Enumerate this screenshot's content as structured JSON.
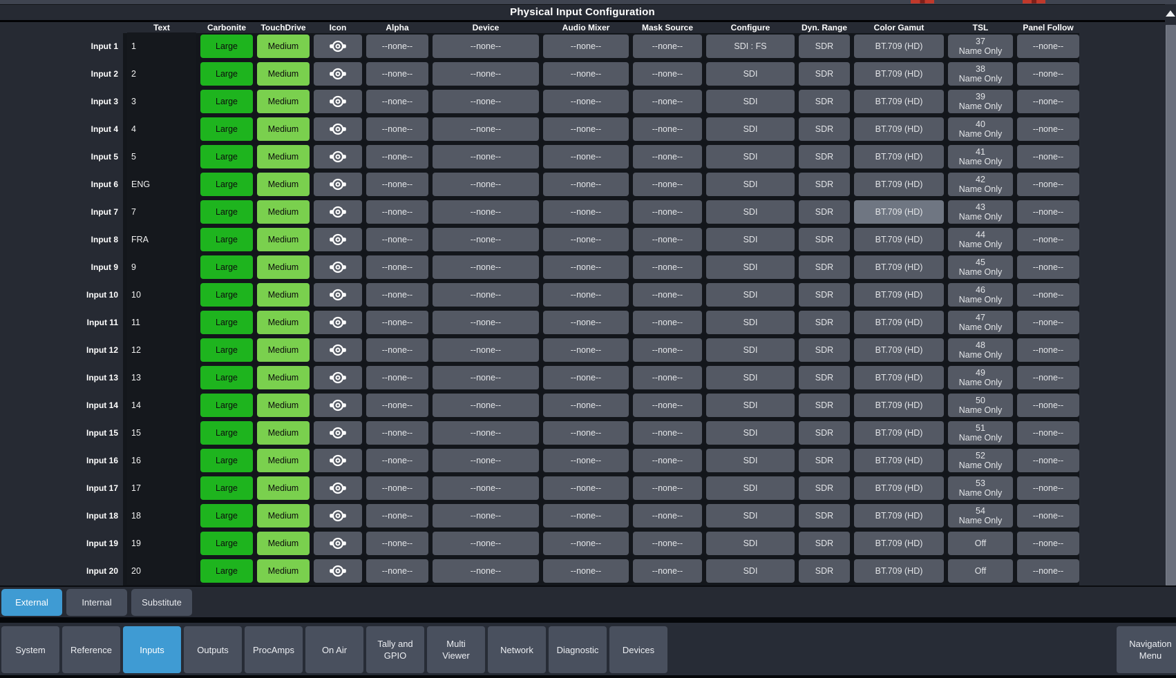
{
  "title": "Physical Input Configuration",
  "colors": {
    "accent_blue": "#3f9bd3",
    "carbonite_green": "#1eb41e",
    "touchdrive_green": "#7ad04e",
    "cell_gray": "#545964",
    "highlight_gray": "#6f7682",
    "red_indicator": "#c0392b",
    "panel_bg": "#262a33"
  },
  "table": {
    "columns": [
      "Text",
      "Carbonite",
      "TouchDrive",
      "Icon",
      "Alpha",
      "Device",
      "Audio Mixer",
      "Mask Source",
      "Configure",
      "Dyn. Range",
      "Color Gamut",
      "TSL",
      "Panel Follow"
    ],
    "icon_cell_glyph": "eye-icon",
    "rows": [
      {
        "label": "Input 1",
        "text": "1",
        "carbonite": "Large",
        "touchdrive": "Medium",
        "alpha": "--none--",
        "device": "--none--",
        "audio_mixer": "--none--",
        "mask_source": "--none--",
        "configure": "SDI : FS",
        "dyn_range": "SDR",
        "color_gamut": "BT.709 (HD)",
        "tsl_address": "37",
        "tsl_mode": "Name Only",
        "panel_follow": "--none--"
      },
      {
        "label": "Input 2",
        "text": "2",
        "carbonite": "Large",
        "touchdrive": "Medium",
        "alpha": "--none--",
        "device": "--none--",
        "audio_mixer": "--none--",
        "mask_source": "--none--",
        "configure": "SDI",
        "dyn_range": "SDR",
        "color_gamut": "BT.709 (HD)",
        "tsl_address": "38",
        "tsl_mode": "Name Only",
        "panel_follow": "--none--"
      },
      {
        "label": "Input 3",
        "text": "3",
        "carbonite": "Large",
        "touchdrive": "Medium",
        "alpha": "--none--",
        "device": "--none--",
        "audio_mixer": "--none--",
        "mask_source": "--none--",
        "configure": "SDI",
        "dyn_range": "SDR",
        "color_gamut": "BT.709 (HD)",
        "tsl_address": "39",
        "tsl_mode": "Name Only",
        "panel_follow": "--none--"
      },
      {
        "label": "Input 4",
        "text": "4",
        "carbonite": "Large",
        "touchdrive": "Medium",
        "alpha": "--none--",
        "device": "--none--",
        "audio_mixer": "--none--",
        "mask_source": "--none--",
        "configure": "SDI",
        "dyn_range": "SDR",
        "color_gamut": "BT.709 (HD)",
        "tsl_address": "40",
        "tsl_mode": "Name Only",
        "panel_follow": "--none--"
      },
      {
        "label": "Input 5",
        "text": "5",
        "carbonite": "Large",
        "touchdrive": "Medium",
        "alpha": "--none--",
        "device": "--none--",
        "audio_mixer": "--none--",
        "mask_source": "--none--",
        "configure": "SDI",
        "dyn_range": "SDR",
        "color_gamut": "BT.709 (HD)",
        "tsl_address": "41",
        "tsl_mode": "Name Only",
        "panel_follow": "--none--"
      },
      {
        "label": "Input 6",
        "text": "ENG",
        "carbonite": "Large",
        "touchdrive": "Medium",
        "alpha": "--none--",
        "device": "--none--",
        "audio_mixer": "--none--",
        "mask_source": "--none--",
        "configure": "SDI",
        "dyn_range": "SDR",
        "color_gamut": "BT.709 (HD)",
        "tsl_address": "42",
        "tsl_mode": "Name Only",
        "panel_follow": "--none--"
      },
      {
        "label": "Input 7",
        "text": "7",
        "carbonite": "Large",
        "touchdrive": "Medium",
        "alpha": "--none--",
        "device": "--none--",
        "audio_mixer": "--none--",
        "mask_source": "--none--",
        "configure": "SDI",
        "dyn_range": "SDR",
        "color_gamut": "BT.709 (HD)",
        "tsl_address": "43",
        "tsl_mode": "Name Only",
        "panel_follow": "--none--",
        "highlighted": "color_gamut"
      },
      {
        "label": "Input 8",
        "text": "FRA",
        "carbonite": "Large",
        "touchdrive": "Medium",
        "alpha": "--none--",
        "device": "--none--",
        "audio_mixer": "--none--",
        "mask_source": "--none--",
        "configure": "SDI",
        "dyn_range": "SDR",
        "color_gamut": "BT.709 (HD)",
        "tsl_address": "44",
        "tsl_mode": "Name Only",
        "panel_follow": "--none--"
      },
      {
        "label": "Input 9",
        "text": "9",
        "carbonite": "Large",
        "touchdrive": "Medium",
        "alpha": "--none--",
        "device": "--none--",
        "audio_mixer": "--none--",
        "mask_source": "--none--",
        "configure": "SDI",
        "dyn_range": "SDR",
        "color_gamut": "BT.709 (HD)",
        "tsl_address": "45",
        "tsl_mode": "Name Only",
        "panel_follow": "--none--"
      },
      {
        "label": "Input 10",
        "text": "10",
        "carbonite": "Large",
        "touchdrive": "Medium",
        "alpha": "--none--",
        "device": "--none--",
        "audio_mixer": "--none--",
        "mask_source": "--none--",
        "configure": "SDI",
        "dyn_range": "SDR",
        "color_gamut": "BT.709 (HD)",
        "tsl_address": "46",
        "tsl_mode": "Name Only",
        "panel_follow": "--none--"
      },
      {
        "label": "Input 11",
        "text": "11",
        "carbonite": "Large",
        "touchdrive": "Medium",
        "alpha": "--none--",
        "device": "--none--",
        "audio_mixer": "--none--",
        "mask_source": "--none--",
        "configure": "SDI",
        "dyn_range": "SDR",
        "color_gamut": "BT.709 (HD)",
        "tsl_address": "47",
        "tsl_mode": "Name Only",
        "panel_follow": "--none--"
      },
      {
        "label": "Input 12",
        "text": "12",
        "carbonite": "Large",
        "touchdrive": "Medium",
        "alpha": "--none--",
        "device": "--none--",
        "audio_mixer": "--none--",
        "mask_source": "--none--",
        "configure": "SDI",
        "dyn_range": "SDR",
        "color_gamut": "BT.709 (HD)",
        "tsl_address": "48",
        "tsl_mode": "Name Only",
        "panel_follow": "--none--"
      },
      {
        "label": "Input 13",
        "text": "13",
        "carbonite": "Large",
        "touchdrive": "Medium",
        "alpha": "--none--",
        "device": "--none--",
        "audio_mixer": "--none--",
        "mask_source": "--none--",
        "configure": "SDI",
        "dyn_range": "SDR",
        "color_gamut": "BT.709 (HD)",
        "tsl_address": "49",
        "tsl_mode": "Name Only",
        "panel_follow": "--none--"
      },
      {
        "label": "Input 14",
        "text": "14",
        "carbonite": "Large",
        "touchdrive": "Medium",
        "alpha": "--none--",
        "device": "--none--",
        "audio_mixer": "--none--",
        "mask_source": "--none--",
        "configure": "SDI",
        "dyn_range": "SDR",
        "color_gamut": "BT.709 (HD)",
        "tsl_address": "50",
        "tsl_mode": "Name Only",
        "panel_follow": "--none--"
      },
      {
        "label": "Input 15",
        "text": "15",
        "carbonite": "Large",
        "touchdrive": "Medium",
        "alpha": "--none--",
        "device": "--none--",
        "audio_mixer": "--none--",
        "mask_source": "--none--",
        "configure": "SDI",
        "dyn_range": "SDR",
        "color_gamut": "BT.709 (HD)",
        "tsl_address": "51",
        "tsl_mode": "Name Only",
        "panel_follow": "--none--"
      },
      {
        "label": "Input 16",
        "text": "16",
        "carbonite": "Large",
        "touchdrive": "Medium",
        "alpha": "--none--",
        "device": "--none--",
        "audio_mixer": "--none--",
        "mask_source": "--none--",
        "configure": "SDI",
        "dyn_range": "SDR",
        "color_gamut": "BT.709 (HD)",
        "tsl_address": "52",
        "tsl_mode": "Name Only",
        "panel_follow": "--none--"
      },
      {
        "label": "Input 17",
        "text": "17",
        "carbonite": "Large",
        "touchdrive": "Medium",
        "alpha": "--none--",
        "device": "--none--",
        "audio_mixer": "--none--",
        "mask_source": "--none--",
        "configure": "SDI",
        "dyn_range": "SDR",
        "color_gamut": "BT.709 (HD)",
        "tsl_address": "53",
        "tsl_mode": "Name Only",
        "panel_follow": "--none--"
      },
      {
        "label": "Input 18",
        "text": "18",
        "carbonite": "Large",
        "touchdrive": "Medium",
        "alpha": "--none--",
        "device": "--none--",
        "audio_mixer": "--none--",
        "mask_source": "--none--",
        "configure": "SDI",
        "dyn_range": "SDR",
        "color_gamut": "BT.709 (HD)",
        "tsl_address": "54",
        "tsl_mode": "Name Only",
        "panel_follow": "--none--"
      },
      {
        "label": "Input 19",
        "text": "19",
        "carbonite": "Large",
        "touchdrive": "Medium",
        "alpha": "--none--",
        "device": "--none--",
        "audio_mixer": "--none--",
        "mask_source": "--none--",
        "configure": "SDI",
        "dyn_range": "SDR",
        "color_gamut": "BT.709 (HD)",
        "tsl_address": "Off",
        "tsl_mode": "",
        "panel_follow": "--none--"
      },
      {
        "label": "Input 20",
        "text": "20",
        "carbonite": "Large",
        "touchdrive": "Medium",
        "alpha": "--none--",
        "device": "--none--",
        "audio_mixer": "--none--",
        "mask_source": "--none--",
        "configure": "SDI",
        "dyn_range": "SDR",
        "color_gamut": "BT.709 (HD)",
        "tsl_address": "Off",
        "tsl_mode": "",
        "panel_follow": "--none--"
      }
    ]
  },
  "tabs": [
    {
      "label": "External",
      "active": true
    },
    {
      "label": "Internal",
      "active": false
    },
    {
      "label": "Substitute",
      "active": false
    }
  ],
  "nav": {
    "items": [
      {
        "label": "System",
        "active": false
      },
      {
        "label": "Reference",
        "active": false
      },
      {
        "label": "Inputs",
        "active": true
      },
      {
        "label": "Outputs",
        "active": false
      },
      {
        "label": "ProcAmps",
        "active": false
      },
      {
        "label": "On Air",
        "active": false
      },
      {
        "label": "Tally and GPIO",
        "active": false
      },
      {
        "label": "Multi Viewer",
        "active": false
      },
      {
        "label": "Network",
        "active": false
      },
      {
        "label": "Diagnostic",
        "active": false
      },
      {
        "label": "Devices",
        "active": false
      }
    ],
    "menu_button": "Navigation Menu"
  }
}
